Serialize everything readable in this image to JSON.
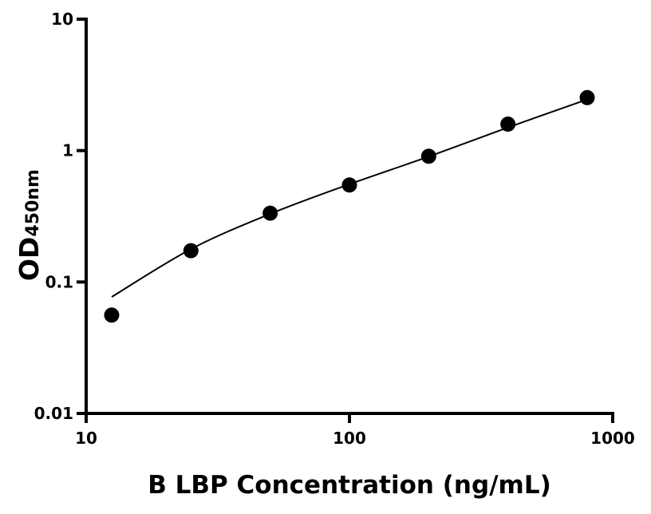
{
  "chart_data": {
    "type": "scatter",
    "title": "",
    "xlabel": "B LBP Concentration (ng/mL)",
    "ylabel_main": "OD",
    "ylabel_sub": "450nm",
    "xscale": "log",
    "yscale": "log",
    "xlim": [
      10,
      1000
    ],
    "ylim": [
      0.01,
      10
    ],
    "grid": false,
    "x_ticks": [
      {
        "value": 10,
        "label": "10"
      },
      {
        "value": 100,
        "label": "100"
      },
      {
        "value": 1000,
        "label": "1000"
      }
    ],
    "y_ticks": [
      {
        "value": 0.01,
        "label": "0.01"
      },
      {
        "value": 0.1,
        "label": "0.1"
      },
      {
        "value": 1,
        "label": "1"
      },
      {
        "value": 10,
        "label": "10"
      }
    ],
    "series": [
      {
        "x": [
          12.5,
          25,
          50,
          100,
          200,
          400,
          800
        ],
        "y": [
          0.056,
          0.173,
          0.334,
          0.547,
          0.906,
          1.59,
          2.53
        ],
        "color": "#000000"
      }
    ],
    "fit_curve": {
      "x": [
        12.5,
        25,
        50,
        100,
        200,
        400,
        800
      ],
      "y": [
        0.077,
        0.178,
        0.33,
        0.555,
        0.9,
        1.5,
        2.45
      ],
      "color": "#000000"
    }
  }
}
